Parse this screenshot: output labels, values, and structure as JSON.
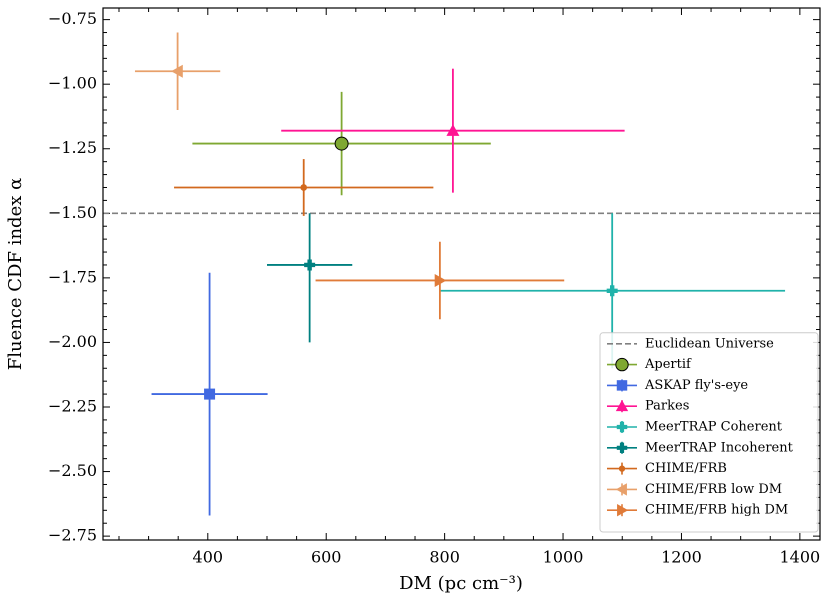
{
  "chart_data": {
    "type": "errorbar",
    "xlabel": "DM (pc cm⁻³)",
    "ylabel": "Fluence CDF index α",
    "xlim": [
      223,
      1434
    ],
    "ylim": [
      -2.765,
      -0.705
    ],
    "xticks": [
      400,
      600,
      800,
      1000,
      1200,
      1400
    ],
    "yticks": [
      {
        "value": -2.75,
        "label": "−2.75"
      },
      {
        "value": -2.5,
        "label": "−2.50"
      },
      {
        "value": -2.25,
        "label": "−2.25"
      },
      {
        "value": -2.0,
        "label": "−2.00"
      },
      {
        "value": -1.75,
        "label": "−1.75"
      },
      {
        "value": -1.5,
        "label": "−1.50"
      },
      {
        "value": -1.25,
        "label": "−1.25"
      },
      {
        "value": -1.0,
        "label": "−1.00"
      },
      {
        "value": -0.75,
        "label": "−0.75"
      }
    ],
    "hlines": [
      {
        "name": "Euclidean Universe",
        "y": -1.5,
        "color": "#808080",
        "style": "dashed"
      }
    ],
    "legend": "lower right",
    "series": [
      {
        "name": "Apertif",
        "color": "#7fa832",
        "marker": "circle",
        "x": [
          626
        ],
        "values": [
          -1.23
        ],
        "xerr": [
          252
        ],
        "yerr_lower": [
          0.2
        ],
        "yerr_upper": [
          0.2
        ]
      },
      {
        "name": "ASKAP fly's-eye",
        "color": "#4169e1",
        "marker": "square",
        "x": [
          403
        ],
        "values": [
          -2.2
        ],
        "xerr": [
          98
        ],
        "yerr_lower": [
          0.47
        ],
        "yerr_upper": [
          0.47
        ]
      },
      {
        "name": "Parkes",
        "color": "#ff1493",
        "marker": "triangle-up",
        "x": [
          814
        ],
        "values": [
          -1.18
        ],
        "xerr": [
          290
        ],
        "yerr_lower": [
          0.24
        ],
        "yerr_upper": [
          0.24
        ]
      },
      {
        "name": "MeerTRAP Coherent",
        "color": "#20b2aa",
        "marker": "plus",
        "x": [
          1083
        ],
        "values": [
          -1.8
        ],
        "xerr": [
          292
        ],
        "yerr_lower": [
          0.3
        ],
        "yerr_upper": [
          0.3
        ]
      },
      {
        "name": "MeerTRAP Incoherent",
        "color": "#008080",
        "marker": "plus",
        "x": [
          572
        ],
        "values": [
          -1.7
        ],
        "xerr": [
          72
        ],
        "yerr_lower": [
          0.3
        ],
        "yerr_upper": [
          0.2
        ]
      },
      {
        "name": "CHIME/FRB",
        "color": "#d2691e",
        "marker": "dot",
        "x": [
          562
        ],
        "values": [
          -1.4
        ],
        "xerr": [
          219
        ],
        "yerr_lower": [
          0.11
        ],
        "yerr_upper": [
          0.11
        ]
      },
      {
        "name": "CHIME/FRB low DM",
        "color": "#e8a06a",
        "marker": "triangle-left",
        "x": [
          349
        ],
        "values": [
          -0.95
        ],
        "xerr": [
          72
        ],
        "yerr_lower": [
          0.15
        ],
        "yerr_upper": [
          0.15
        ]
      },
      {
        "name": "CHIME/FRB high DM",
        "color": "#e07b39",
        "marker": "triangle-right",
        "x": [
          792
        ],
        "values": [
          -1.76
        ],
        "xerr": [
          210
        ],
        "yerr_lower": [
          0.15
        ],
        "yerr_upper": [
          0.15
        ]
      }
    ]
  }
}
